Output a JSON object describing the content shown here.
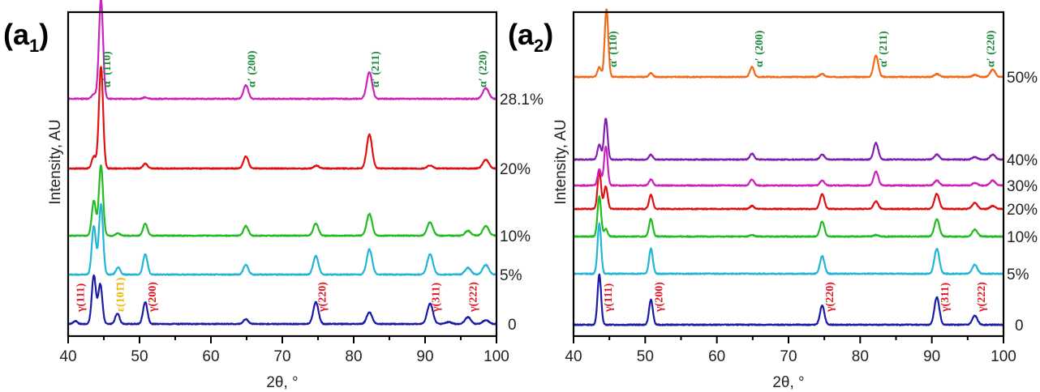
{
  "chart_data": [
    {
      "type": "line",
      "panel_label": "a",
      "panel_subscript": "1",
      "title": "",
      "xlabel": "2θ, °",
      "ylabel": "Intensity, AU",
      "xlim": [
        40,
        100
      ],
      "x_ticks": [
        40,
        50,
        60,
        70,
        80,
        90,
        100
      ],
      "x_minor_ticks": [
        45,
        55,
        65,
        75,
        85,
        95
      ],
      "grid": false,
      "legend": "right-side labels per trace",
      "series": [
        {
          "name": "0",
          "color": "#1a1aa6",
          "baseline_offset": 0,
          "peaks": [
            [
              41.0,
              0.06
            ],
            [
              43.6,
              1.0
            ],
            [
              44.5,
              0.82
            ],
            [
              46.9,
              0.22
            ],
            [
              50.8,
              0.45
            ],
            [
              64.9,
              0.1
            ],
            [
              74.7,
              0.45
            ],
            [
              82.2,
              0.24
            ],
            [
              90.7,
              0.42
            ],
            [
              93.3,
              0.04
            ],
            [
              96.0,
              0.14
            ],
            [
              98.5,
              0.08
            ]
          ]
        },
        {
          "name": "5%",
          "color": "#22b5d6",
          "baseline_offset": 1,
          "peaks": [
            [
              43.6,
              1.0
            ],
            [
              44.6,
              1.45
            ],
            [
              47.0,
              0.15
            ],
            [
              50.8,
              0.42
            ],
            [
              64.9,
              0.2
            ],
            [
              74.7,
              0.38
            ],
            [
              82.2,
              0.52
            ],
            [
              90.7,
              0.42
            ],
            [
              96.0,
              0.14
            ],
            [
              98.5,
              0.2
            ]
          ]
        },
        {
          "name": "10%",
          "color": "#22bb22",
          "baseline_offset": 2,
          "peaks": [
            [
              43.6,
              0.72
            ],
            [
              44.6,
              1.45
            ],
            [
              47.0,
              0.05
            ],
            [
              50.8,
              0.25
            ],
            [
              64.9,
              0.2
            ],
            [
              74.7,
              0.25
            ],
            [
              82.2,
              0.45
            ],
            [
              90.7,
              0.28
            ],
            [
              96.0,
              0.1
            ],
            [
              98.5,
              0.2
            ]
          ]
        },
        {
          "name": "20%",
          "color": "#dd1111",
          "baseline_offset": 3,
          "peaks": [
            [
              43.6,
              0.25
            ],
            [
              44.6,
              2.1
            ],
            [
              50.8,
              0.1
            ],
            [
              64.9,
              0.25
            ],
            [
              74.8,
              0.06
            ],
            [
              82.2,
              0.7
            ],
            [
              90.7,
              0.06
            ],
            [
              98.5,
              0.18
            ]
          ]
        },
        {
          "name": "28.1%",
          "color": "#cc22bb",
          "baseline_offset": 4,
          "peaks": [
            [
              43.6,
              0.1
            ],
            [
              44.6,
              2.05
            ],
            [
              50.8,
              0.03
            ],
            [
              64.9,
              0.28
            ],
            [
              82.2,
              0.55
            ],
            [
              98.5,
              0.22
            ]
          ]
        }
      ],
      "annotations": [
        {
          "text": "γ(111)",
          "x": 42.2,
          "phase": "austenite",
          "color": "#e0141e"
        },
        {
          "text": "ε(101̄1)",
          "x": 47.8,
          "phase": "epsilon martensite",
          "color": "#f0b400"
        },
        {
          "text": "γ(200)",
          "x": 52.3,
          "phase": "austenite",
          "color": "#e0141e"
        },
        {
          "text": "γ(220)",
          "x": 76.1,
          "phase": "austenite",
          "color": "#e0141e"
        },
        {
          "text": "γ(311)",
          "x": 92.0,
          "phase": "austenite",
          "color": "#e0141e"
        },
        {
          "text": "γ(222)",
          "x": 97.2,
          "phase": "austenite",
          "color": "#e0141e"
        },
        {
          "text": "α′ (110)",
          "x": 45.9,
          "phase": "alpha martensite",
          "color": "#1a8a3a"
        },
        {
          "text": "α′ (200)",
          "x": 66.2,
          "phase": "alpha martensite",
          "color": "#1a8a3a"
        },
        {
          "text": "α′ (211)",
          "x": 83.5,
          "phase": "alpha martensite",
          "color": "#1a8a3a"
        },
        {
          "text": "α′ (220)",
          "x": 98.6,
          "phase": "alpha martensite",
          "color": "#1a8a3a"
        }
      ]
    },
    {
      "type": "line",
      "panel_label": "a",
      "panel_subscript": "2",
      "title": "",
      "xlabel": "2θ, °",
      "ylabel": "Intensity, AU",
      "xlim": [
        40,
        100
      ],
      "x_ticks": [
        40,
        50,
        60,
        70,
        80,
        90,
        100
      ],
      "x_minor_ticks": [
        45,
        55,
        65,
        75,
        85,
        95
      ],
      "grid": false,
      "legend": "right-side labels per trace",
      "series": [
        {
          "name": "0",
          "color": "#1a1aa6",
          "baseline_offset": 0,
          "peaks": [
            [
              43.6,
              1.0
            ],
            [
              50.8,
              0.5
            ],
            [
              74.7,
              0.38
            ],
            [
              90.7,
              0.55
            ],
            [
              96.0,
              0.18
            ]
          ]
        },
        {
          "name": "5%",
          "color": "#22b5d6",
          "baseline_offset": 1,
          "peaks": [
            [
              43.6,
              1.0
            ],
            [
              50.8,
              0.5
            ],
            [
              74.7,
              0.35
            ],
            [
              90.7,
              0.5
            ],
            [
              96.0,
              0.18
            ]
          ]
        },
        {
          "name": "10%",
          "color": "#22bb22",
          "baseline_offset": 2,
          "peaks": [
            [
              43.6,
              0.8
            ],
            [
              44.5,
              0.15
            ],
            [
              50.8,
              0.35
            ],
            [
              64.9,
              0.03
            ],
            [
              74.7,
              0.3
            ],
            [
              82.2,
              0.03
            ],
            [
              90.7,
              0.35
            ],
            [
              96.0,
              0.14
            ]
          ]
        },
        {
          "name": "20%",
          "color": "#dd1111",
          "baseline_offset": 3,
          "peaks": [
            [
              43.6,
              0.75
            ],
            [
              44.5,
              0.45
            ],
            [
              50.8,
              0.28
            ],
            [
              64.9,
              0.06
            ],
            [
              74.7,
              0.3
            ],
            [
              82.2,
              0.15
            ],
            [
              90.7,
              0.3
            ],
            [
              96.0,
              0.12
            ],
            [
              98.5,
              0.06
            ]
          ]
        },
        {
          "name": "30%",
          "color": "#cc22bb",
          "baseline_offset": 4,
          "peaks": [
            [
              43.6,
              0.32
            ],
            [
              44.5,
              0.78
            ],
            [
              50.8,
              0.12
            ],
            [
              64.9,
              0.12
            ],
            [
              74.7,
              0.1
            ],
            [
              82.2,
              0.28
            ],
            [
              90.7,
              0.1
            ],
            [
              96.0,
              0.05
            ],
            [
              98.5,
              0.1
            ]
          ]
        },
        {
          "name": "40%",
          "color": "#7f1fae",
          "baseline_offset": 5,
          "peaks": [
            [
              43.6,
              0.3
            ],
            [
              44.5,
              0.82
            ],
            [
              50.8,
              0.1
            ],
            [
              64.9,
              0.12
            ],
            [
              74.7,
              0.1
            ],
            [
              82.2,
              0.33
            ],
            [
              90.7,
              0.1
            ],
            [
              96.0,
              0.05
            ],
            [
              98.5,
              0.1
            ]
          ]
        },
        {
          "name": "50%",
          "color": "#f06a1a",
          "baseline_offset": 6,
          "peaks": [
            [
              43.6,
              0.2
            ],
            [
              44.6,
              1.35
            ],
            [
              50.8,
              0.08
            ],
            [
              64.9,
              0.2
            ],
            [
              74.7,
              0.06
            ],
            [
              82.2,
              0.43
            ],
            [
              90.7,
              0.06
            ],
            [
              96.0,
              0.04
            ],
            [
              98.5,
              0.15
            ]
          ]
        }
      ],
      "annotations": [
        {
          "text": "γ(111)",
          "x": 45.3,
          "phase": "austenite",
          "color": "#e0141e"
        },
        {
          "text": "γ(200)",
          "x": 52.4,
          "phase": "austenite",
          "color": "#e0141e"
        },
        {
          "text": "γ(220)",
          "x": 76.2,
          "phase": "austenite",
          "color": "#e0141e"
        },
        {
          "text": "γ(311)",
          "x": 92.3,
          "phase": "austenite",
          "color": "#e0141e"
        },
        {
          "text": "γ(222)",
          "x": 97.4,
          "phase": "austenite",
          "color": "#e0141e"
        },
        {
          "text": "α′ (110)",
          "x": 46.0,
          "phase": "alpha martensite",
          "color": "#1a8a3a"
        },
        {
          "text": "α′ (200)",
          "x": 66.4,
          "phase": "alpha martensite",
          "color": "#1a8a3a"
        },
        {
          "text": "α′ (211)",
          "x": 83.7,
          "phase": "alpha martensite",
          "color": "#1a8a3a"
        },
        {
          "text": "α′ (220)",
          "x": 98.7,
          "phase": "alpha martensite",
          "color": "#1a8a3a"
        }
      ]
    }
  ]
}
